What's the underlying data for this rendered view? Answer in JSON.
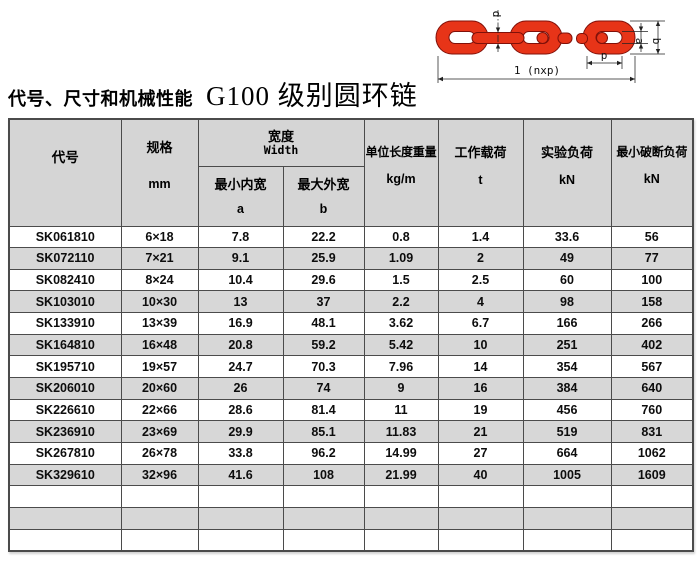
{
  "title": {
    "prefix": "代号、尺寸和机械性能",
    "main": "G100 级别圆环链"
  },
  "diagram": {
    "labels": {
      "d": "d",
      "a": "a",
      "b": "b",
      "p": "p",
      "length": "1 (nxp)"
    },
    "chain_color": "#e73418"
  },
  "table": {
    "header": {
      "code": "代号",
      "spec": "规格",
      "spec_unit": "mm",
      "width_group_cn": "宽度",
      "width_group_en": "Width",
      "min_inner_cn": "最小内宽",
      "min_inner_sym": "a",
      "max_outer_cn": "最大外宽",
      "max_outer_sym": "b",
      "unit_weight_cn": "单位长度重量",
      "unit_weight_unit": "kg/m",
      "working_load_cn": "工作载荷",
      "working_load_unit": "t",
      "test_load_cn": "实验负荷",
      "test_load_unit": "kN",
      "breaking_load_cn": "最小破断负荷",
      "breaking_load_unit": "kN"
    },
    "rows": [
      [
        "SK061810",
        "6×18",
        "7.8",
        "22.2",
        "0.8",
        "1.4",
        "33.6",
        "56"
      ],
      [
        "SK072110",
        "7×21",
        "9.1",
        "25.9",
        "1.09",
        "2",
        "49",
        "77"
      ],
      [
        "SK082410",
        "8×24",
        "10.4",
        "29.6",
        "1.5",
        "2.5",
        "60",
        "100"
      ],
      [
        "SK103010",
        "10×30",
        "13",
        "37",
        "2.2",
        "4",
        "98",
        "158"
      ],
      [
        "SK133910",
        "13×39",
        "16.9",
        "48.1",
        "3.62",
        "6.7",
        "166",
        "266"
      ],
      [
        "SK164810",
        "16×48",
        "20.8",
        "59.2",
        "5.42",
        "10",
        "251",
        "402"
      ],
      [
        "SK195710",
        "19×57",
        "24.7",
        "70.3",
        "7.96",
        "14",
        "354",
        "567"
      ],
      [
        "SK206010",
        "20×60",
        "26",
        "74",
        "9",
        "16",
        "384",
        "640"
      ],
      [
        "SK226610",
        "22×66",
        "28.6",
        "81.4",
        "11",
        "19",
        "456",
        "760"
      ],
      [
        "SK236910",
        "23×69",
        "29.9",
        "85.1",
        "11.83",
        "21",
        "519",
        "831"
      ],
      [
        "SK267810",
        "26×78",
        "33.8",
        "96.2",
        "14.99",
        "27",
        "664",
        "1062"
      ],
      [
        "SK329610",
        "32×96",
        "41.6",
        "108",
        "21.99",
        "40",
        "1005",
        "1609"
      ]
    ],
    "empty_rows": 3,
    "colors": {
      "header_bg": "#d5d5d5",
      "row_alt_bg": "#d7d7d7",
      "border": "#4b4b4b"
    }
  }
}
